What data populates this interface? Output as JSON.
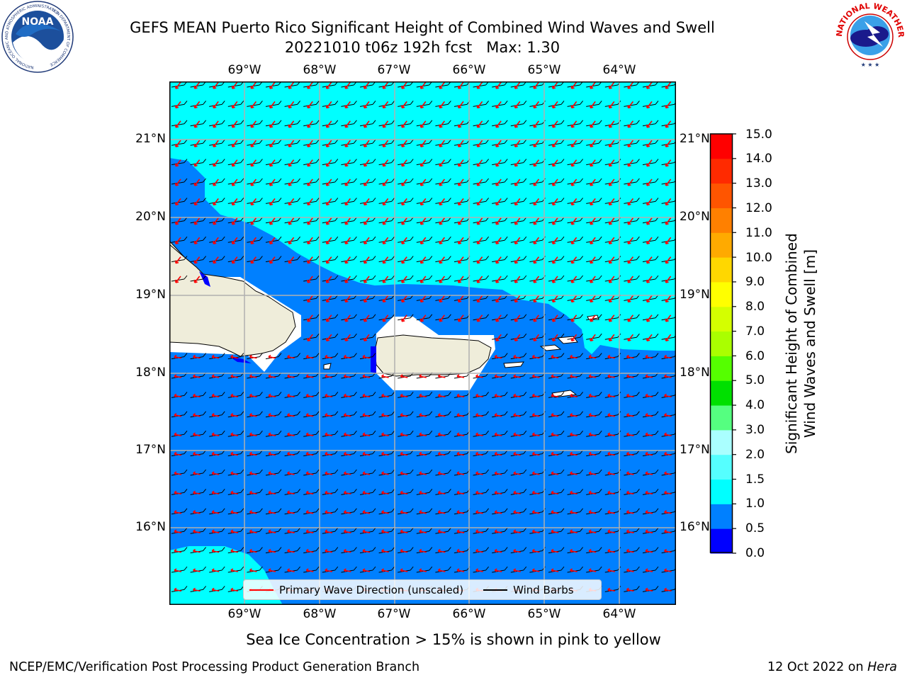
{
  "header": {
    "title_line1": "GEFS MEAN Puerto Rico Significant Height of Combined Wind Waves and Swell",
    "title_line2": "20221010 t06z 192h fcst   Max: 1.30"
  },
  "logos": {
    "left_text": "NOAA",
    "left_ring_top": "NATIONAL OCEANIC AND ATMOSPHERIC ADMINISTRATION",
    "left_ring_bottom": "U.S. DEPARTMENT OF COMMERCE",
    "right_ring": "NATIONAL WEATHER SERVICE"
  },
  "map": {
    "lon_ticks": [
      "69°W",
      "68°W",
      "67°W",
      "66°W",
      "65°W",
      "64°W"
    ],
    "lat_ticks": [
      "21°N",
      "20°N",
      "19°N",
      "18°N",
      "17°N",
      "16°N"
    ],
    "colors": {
      "land": "#efedda",
      "cyan": "#00ffff",
      "blue": "#0080ff",
      "deep": "#0000ff",
      "grid": "#b0b0b0",
      "arrow": "#ff0000"
    },
    "legend": {
      "primary_wave": "Primary Wave Direction (unscaled)",
      "wind_barbs": "Wind Barbs"
    }
  },
  "colorbar": {
    "label_line1": "Significant Height of Combined",
    "label_line2": "Wind Waves and Swell [m]",
    "ticks": [
      "15.0",
      "14.0",
      "13.0",
      "12.0",
      "11.0",
      "10.0",
      "9.0",
      "8.0",
      "7.0",
      "6.0",
      "5.0",
      "4.0",
      "3.0",
      "2.0",
      "1.5",
      "1.0",
      "0.5",
      "0.0"
    ],
    "colors": [
      "#0000ff",
      "#0080ff",
      "#00ffff",
      "#55ffff",
      "#aaffff",
      "#55ff80",
      "#00e000",
      "#55ff00",
      "#aaff00",
      "#d4ff00",
      "#ffff00",
      "#ffd700",
      "#ffaa00",
      "#ff8000",
      "#ff5500",
      "#ff2a00",
      "#ff0000"
    ]
  },
  "subtitle": "Sea Ice Concentration > 15% is shown in pink to yellow",
  "footer": {
    "left": "NCEP/EMC/Verification Post Processing Product Generation Branch",
    "right_prefix": "12 Oct 2022 on ",
    "right_host": "Hera"
  }
}
